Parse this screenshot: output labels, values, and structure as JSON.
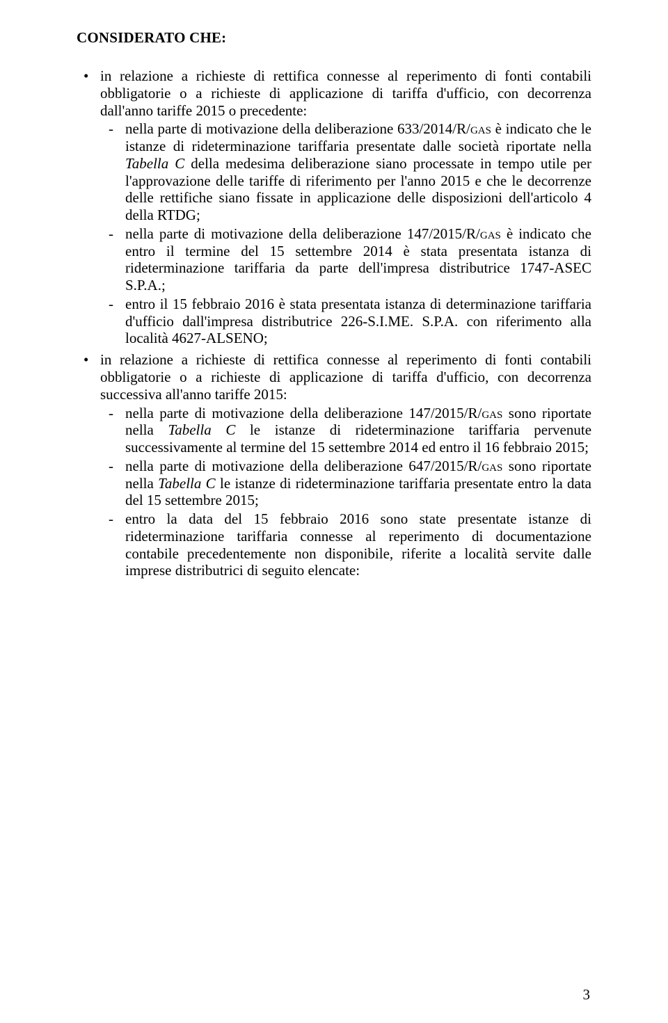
{
  "heading": "CONSIDERATO CHE:",
  "page_number": "3",
  "L1": [
    {
      "lead": "in relazione a richieste di rettifica connesse al reperimento di fonti contabili obbligatorie o a richieste di applicazione di tariffa d'ufficio, con decorrenza dall'anno tariffe 2015 o precedente:",
      "L2": [
        {
          "pre": "nella parte di motivazione della deliberazione 633/2014/R/",
          "sc": "gas",
          "mid1": " è indicato che le istanze di rideterminazione tariffaria presentate dalle società riportate nella ",
          "it": "Tabella C",
          "post": " della medesima deliberazione siano processate in tempo utile per l'approvazione delle tariffe di riferimento per l'anno 2015 e che le decorrenze delle rettifiche siano fissate in applicazione delle disposizioni dell'articolo 4 della RTDG;"
        },
        {
          "pre": "nella parte di motivazione della deliberazione 147/2015/R/",
          "sc": "gas",
          "post": " è indicato che entro il termine del 15 settembre 2014 è stata presentata istanza di rideterminazione tariffaria da parte dell'impresa distributrice 1747-ASEC S.P.A.;"
        },
        {
          "text": "entro il 15 febbraio 2016 è stata presentata istanza di determinazione tariffaria d'ufficio dall'impresa distributrice 226-S.I.ME. S.P.A. con riferimento alla località 4627-ALSENO;"
        }
      ]
    },
    {
      "lead": "in relazione a richieste di rettifica connesse al reperimento di fonti contabili obbligatorie o a richieste di applicazione di tariffa d'ufficio, con decorrenza successiva all'anno tariffe 2015:",
      "L2": [
        {
          "pre": "nella parte di motivazione della deliberazione 147/2015/R/",
          "sc": "gas",
          "mid1": " sono riportate nella ",
          "it": "Tabella C",
          "post": " le istanze di rideterminazione tariffaria pervenute successivamente al termine del 15 settembre 2014 ed entro il 16 febbraio 2015;"
        },
        {
          "pre": "nella parte di motivazione della deliberazione 647/2015/R/",
          "sc": "gas",
          "mid1": " sono riportate nella ",
          "it": "Tabella C",
          "post": " le istanze di rideterminazione tariffaria presentate entro la data del 15 settembre 2015;"
        },
        {
          "text": "entro la data del 15 febbraio 2016 sono state presentate istanze di rideterminazione tariffaria connesse al reperimento di documentazione contabile precedentemente non disponibile, riferite a località servite dalle imprese distributrici di seguito elencate:"
        }
      ]
    }
  ]
}
